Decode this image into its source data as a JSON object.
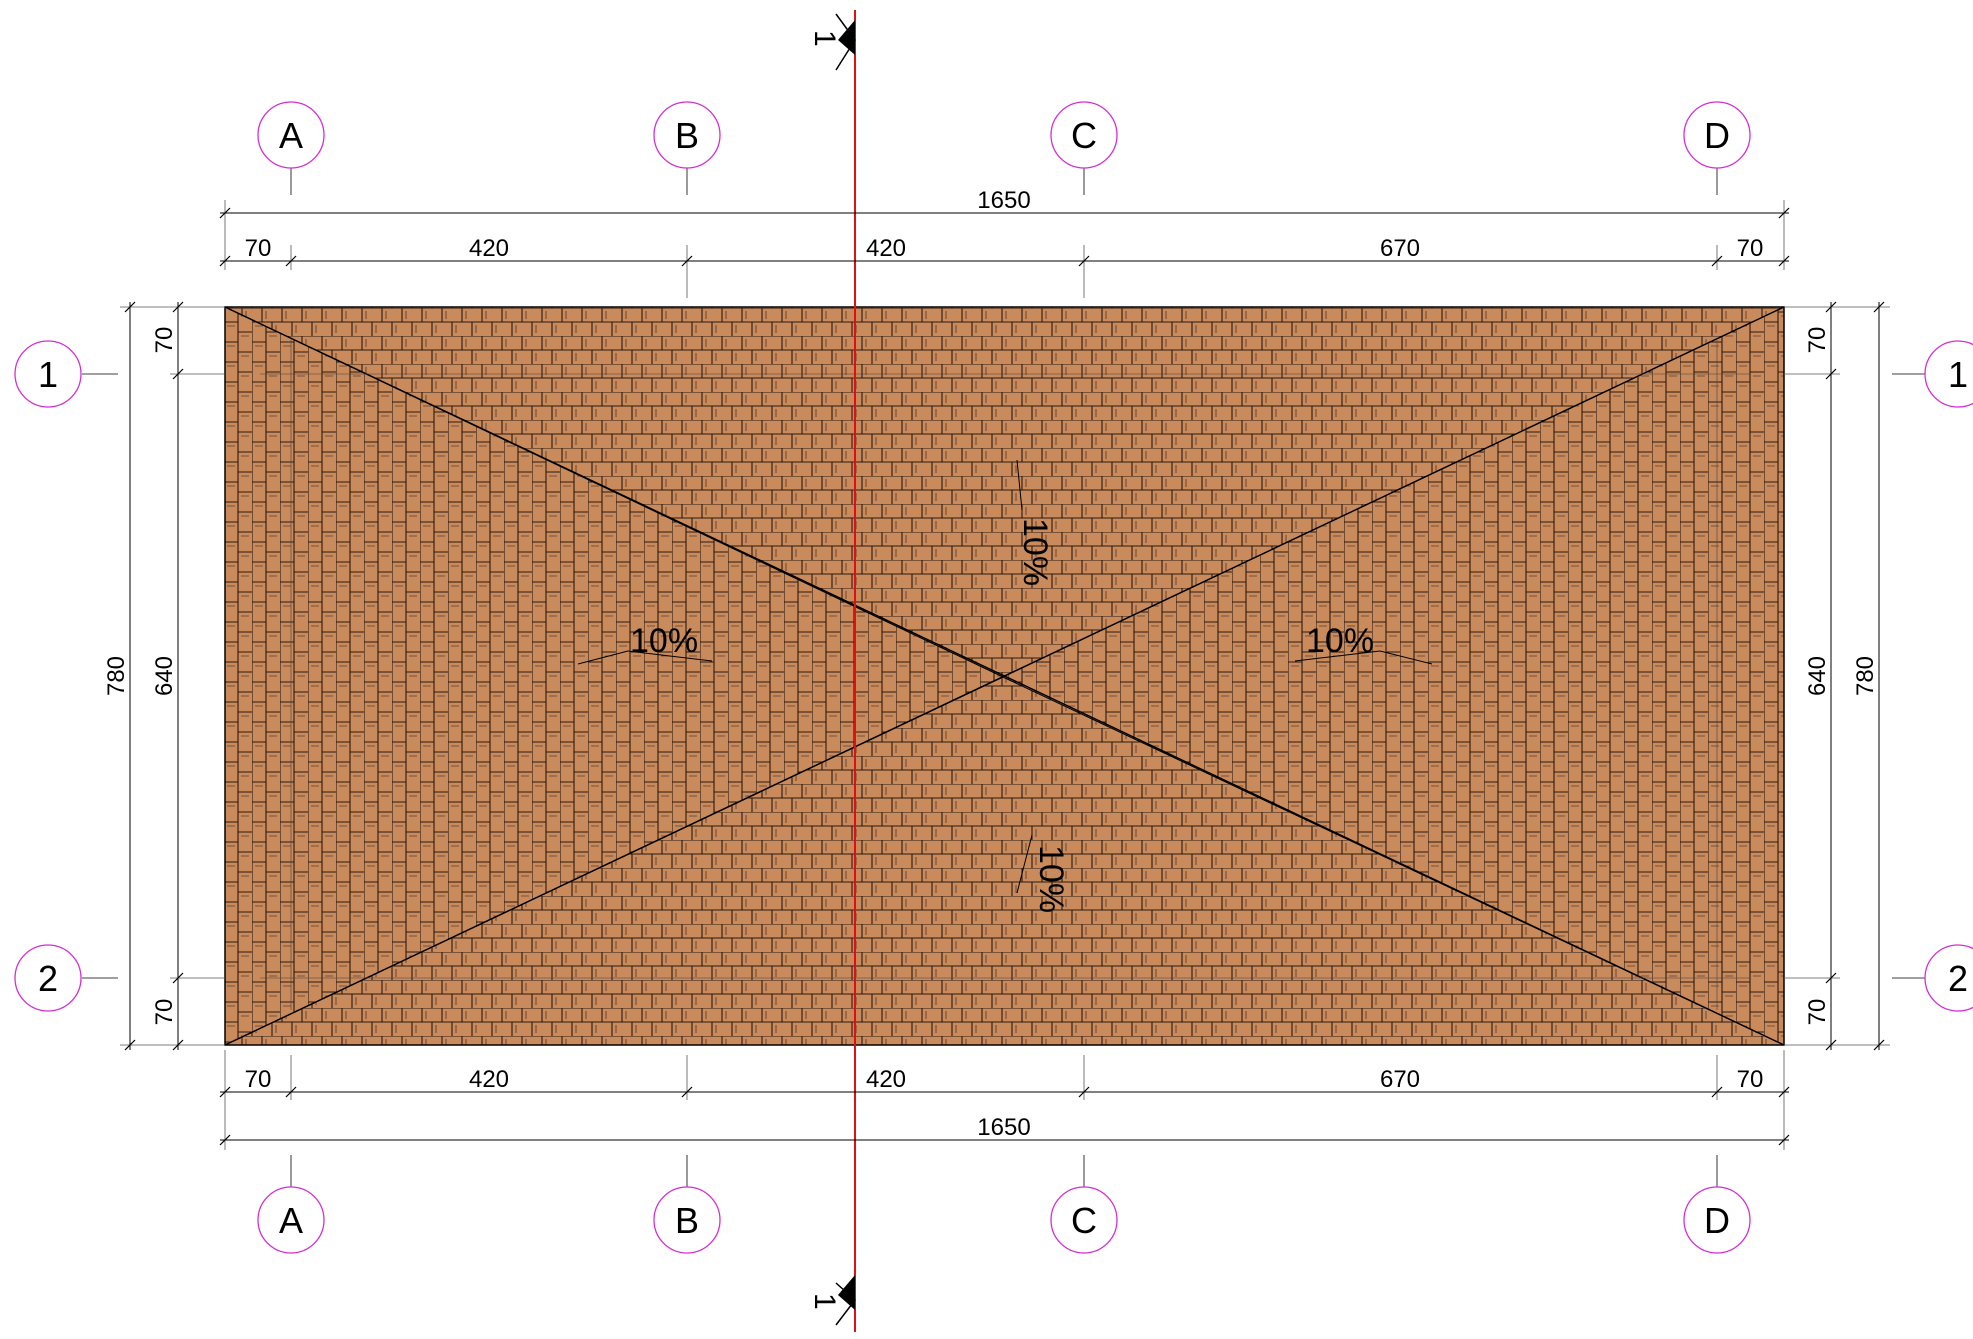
{
  "colors": {
    "roof_fill": "#c98a5c",
    "tile_line": "#2a1a10",
    "grid_bubble": "#d22fd2",
    "section_line": "#e01010"
  },
  "grid": {
    "columns": [
      "A",
      "B",
      "C",
      "D"
    ],
    "rows": [
      "1",
      "2"
    ]
  },
  "dimensions": {
    "overall_width": "1650",
    "width_segments": [
      "70",
      "420",
      "420",
      "670",
      "70"
    ],
    "overall_depth": "780",
    "depth_segments": [
      "70",
      "640",
      "70"
    ]
  },
  "section_mark": {
    "label": "1"
  },
  "slopes": {
    "north": "10%",
    "south": "10%",
    "west": "10%",
    "east": "10%"
  }
}
